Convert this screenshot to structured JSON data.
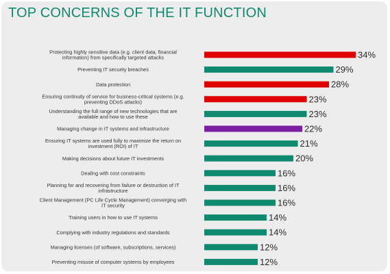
{
  "header": {
    "title": "TOP CONCERNS OF THE IT FUNCTION"
  },
  "colors": {
    "title": "#0f8a6e",
    "teal": "#0f8a6e",
    "red": "#e00000",
    "purple": "#7b1fa2"
  },
  "chart_data": {
    "type": "bar",
    "orientation": "horizontal",
    "title": "TOP CONCERNS OF THE IT FUNCTION",
    "xlabel": "",
    "ylabel": "",
    "xlim": [
      0,
      34
    ],
    "grid": false,
    "legend": "none",
    "unit_suffix": "%",
    "categories": [
      [
        "Protecting highly sensitive data (e.g. client data, financial",
        "information) from specifically targeted attacks"
      ],
      [
        "Preventing IT security breaches"
      ],
      [
        "Data protection"
      ],
      [
        "Ensuring continuity of service for business-critical systems (e.g.",
        "preventing DDoS attacks)"
      ],
      [
        "Understanding the full range of new technologies that are",
        "available and how to use these"
      ],
      [
        "Managing change in IT systems and infrastructure"
      ],
      [
        "Ensuring IT systems are used fully to maximize the return on",
        "investment (ROI) of IT"
      ],
      [
        "Making decisions about future IT investments"
      ],
      [
        "Dealing with cost constraints"
      ],
      [
        "Planning for and recovering from failure or destruction of IT",
        "infrastructure"
      ],
      [
        "Client Management (PC Life Cycle Management) converging with",
        "IT security"
      ],
      [
        "Training users in how to use IT systems"
      ],
      [
        "Complying with industry regulations and standards"
      ],
      [
        "Managing licenses (of software, subscriptions, services)"
      ],
      [
        "Preventing misuse of computer systems by employees"
      ]
    ],
    "values": [
      34,
      29,
      28,
      23,
      23,
      22,
      21,
      20,
      16,
      16,
      16,
      14,
      14,
      12,
      12
    ],
    "bar_colors": [
      "#e00000",
      "#0f8a6e",
      "#e00000",
      "#e00000",
      "#0f8a6e",
      "#7b1fa2",
      "#0f8a6e",
      "#0f8a6e",
      "#0f8a6e",
      "#0f8a6e",
      "#0f8a6e",
      "#0f8a6e",
      "#0f8a6e",
      "#0f8a6e",
      "#0f8a6e"
    ]
  }
}
